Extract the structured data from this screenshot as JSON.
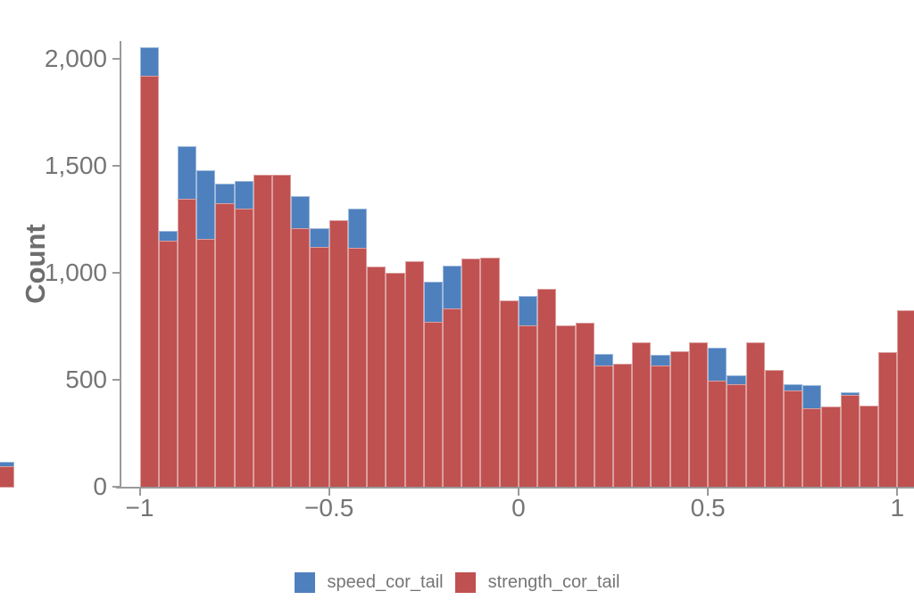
{
  "chart_data": {
    "type": "histogram",
    "overlay": true,
    "title": "",
    "xlabel": "",
    "ylabel": "Count",
    "x_domain": [
      -1.0,
      1.05
    ],
    "y_domain": [
      0,
      2000
    ],
    "bin_width": 0.05,
    "grid": false,
    "legend_position": "bottom-center",
    "x_ticks": {
      "values": [
        -1,
        -0.5,
        0,
        0.5,
        1
      ],
      "labels": [
        "−1",
        "−0.5",
        "0",
        "0.5",
        "1"
      ]
    },
    "y_ticks": {
      "values": [
        0,
        500,
        1000,
        1500,
        2000
      ],
      "labels": [
        "0",
        "500",
        "1,000",
        "1,500",
        "2,000"
      ]
    },
    "colors": {
      "axis_line": "#9a9a9a",
      "tick_label_text": "#757575",
      "axis_title_text": "#6e6e6e",
      "legend_text": "#757575",
      "background": "#ffffff"
    },
    "series": [
      {
        "name": "speed_cor_tail",
        "color": "#4e80be",
        "layer": "behind"
      },
      {
        "name": "strength_cor_tail",
        "color": "#bf5150",
        "layer": "front"
      }
    ],
    "bins": [
      {
        "x0": -1.0,
        "speed_cor_tail": 2055,
        "strength_cor_tail": 1920
      },
      {
        "x0": -0.95,
        "speed_cor_tail": 1195,
        "strength_cor_tail": 1150
      },
      {
        "x0": -0.9,
        "speed_cor_tail": 1590,
        "strength_cor_tail": 1345
      },
      {
        "x0": -0.85,
        "speed_cor_tail": 1480,
        "strength_cor_tail": 1160
      },
      {
        "x0": -0.8,
        "speed_cor_tail": 1415,
        "strength_cor_tail": 1325
      },
      {
        "x0": -0.75,
        "speed_cor_tail": 1430,
        "strength_cor_tail": 1300
      },
      {
        "x0": -0.7,
        "speed_cor_tail": null,
        "strength_cor_tail": 1460
      },
      {
        "x0": -0.65,
        "speed_cor_tail": null,
        "strength_cor_tail": 1460
      },
      {
        "x0": -0.6,
        "speed_cor_tail": 1360,
        "strength_cor_tail": 1210
      },
      {
        "x0": -0.55,
        "speed_cor_tail": 1210,
        "strength_cor_tail": 1120
      },
      {
        "x0": -0.5,
        "speed_cor_tail": null,
        "strength_cor_tail": 1245
      },
      {
        "x0": -0.45,
        "speed_cor_tail": 1300,
        "strength_cor_tail": 1115
      },
      {
        "x0": -0.4,
        "speed_cor_tail": null,
        "strength_cor_tail": 1030
      },
      {
        "x0": -0.35,
        "speed_cor_tail": null,
        "strength_cor_tail": 1000
      },
      {
        "x0": -0.3,
        "speed_cor_tail": null,
        "strength_cor_tail": 1055
      },
      {
        "x0": -0.25,
        "speed_cor_tail": 960,
        "strength_cor_tail": 770
      },
      {
        "x0": -0.2,
        "speed_cor_tail": 1035,
        "strength_cor_tail": 835
      },
      {
        "x0": -0.15,
        "speed_cor_tail": null,
        "strength_cor_tail": 1065
      },
      {
        "x0": -0.1,
        "speed_cor_tail": null,
        "strength_cor_tail": 1070
      },
      {
        "x0": -0.05,
        "speed_cor_tail": null,
        "strength_cor_tail": 870
      },
      {
        "x0": 0.0,
        "speed_cor_tail": 890,
        "strength_cor_tail": 755
      },
      {
        "x0": 0.05,
        "speed_cor_tail": null,
        "strength_cor_tail": 925
      },
      {
        "x0": 0.1,
        "speed_cor_tail": null,
        "strength_cor_tail": 755
      },
      {
        "x0": 0.15,
        "speed_cor_tail": null,
        "strength_cor_tail": 765
      },
      {
        "x0": 0.2,
        "speed_cor_tail": 620,
        "strength_cor_tail": 565
      },
      {
        "x0": 0.25,
        "speed_cor_tail": null,
        "strength_cor_tail": 575
      },
      {
        "x0": 0.3,
        "speed_cor_tail": null,
        "strength_cor_tail": 675
      },
      {
        "x0": 0.35,
        "speed_cor_tail": 615,
        "strength_cor_tail": 565
      },
      {
        "x0": 0.4,
        "speed_cor_tail": null,
        "strength_cor_tail": 635
      },
      {
        "x0": 0.45,
        "speed_cor_tail": null,
        "strength_cor_tail": 675
      },
      {
        "x0": 0.5,
        "speed_cor_tail": 650,
        "strength_cor_tail": 495
      },
      {
        "x0": 0.55,
        "speed_cor_tail": 520,
        "strength_cor_tail": 480
      },
      {
        "x0": 0.6,
        "speed_cor_tail": null,
        "strength_cor_tail": 675
      },
      {
        "x0": 0.65,
        "speed_cor_tail": null,
        "strength_cor_tail": 545
      },
      {
        "x0": 0.7,
        "speed_cor_tail": 480,
        "strength_cor_tail": 450
      },
      {
        "x0": 0.75,
        "speed_cor_tail": 475,
        "strength_cor_tail": 365
      },
      {
        "x0": 0.8,
        "speed_cor_tail": null,
        "strength_cor_tail": 375
      },
      {
        "x0": 0.85,
        "speed_cor_tail": 440,
        "strength_cor_tail": 430
      },
      {
        "x0": 0.9,
        "speed_cor_tail": null,
        "strength_cor_tail": 380
      },
      {
        "x0": 0.95,
        "speed_cor_tail": null,
        "strength_cor_tail": 630
      },
      {
        "x0": 1.0,
        "speed_cor_tail": null,
        "strength_cor_tail": 825
      }
    ],
    "partial_bin_left_edge": {
      "speed_cor_tail": 115,
      "strength_cor_tail": 95
    }
  }
}
